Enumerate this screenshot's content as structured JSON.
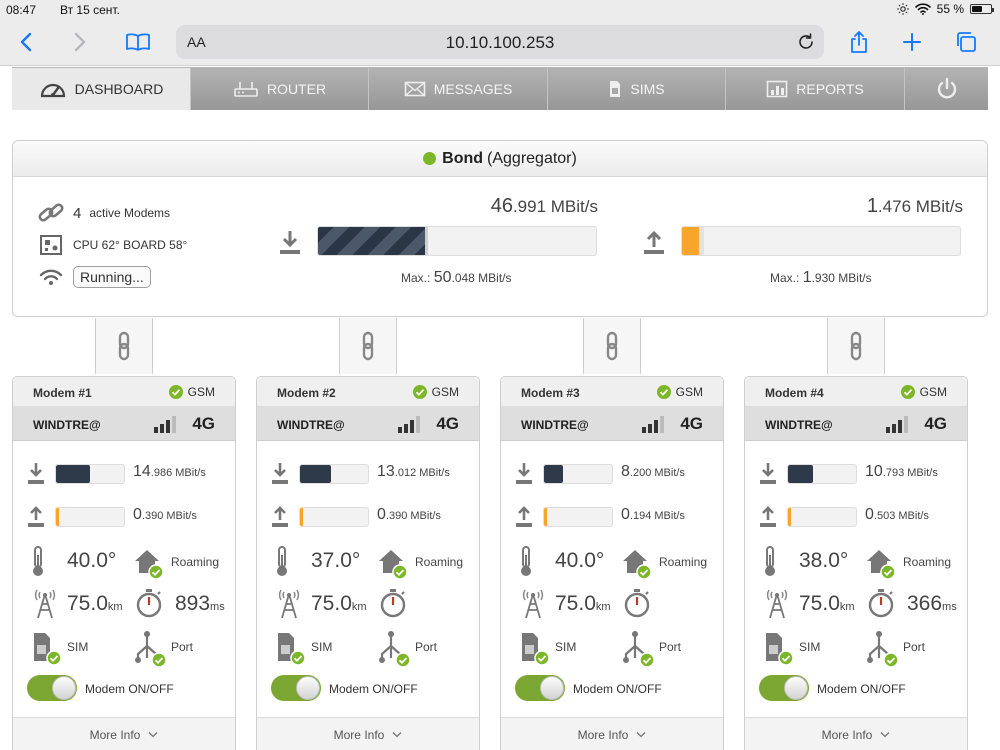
{
  "statusbar": {
    "time": "08:47",
    "date": "Вт 15 сент.",
    "battery": "55 %",
    "battery_level": 0.55
  },
  "browser": {
    "aa": "AA",
    "url": "10.10.100.253"
  },
  "nav": {
    "tabs": [
      {
        "label": "DASHBOARD",
        "icon": "gauge-icon"
      },
      {
        "label": "ROUTER",
        "icon": "router-icon"
      },
      {
        "label": "MESSAGES",
        "icon": "envelope-icon"
      },
      {
        "label": "SIMS",
        "icon": "sim-icon"
      },
      {
        "label": "REPORTS",
        "icon": "chart-icon"
      }
    ]
  },
  "bond": {
    "title": "Bond",
    "subtitle": "(Aggregator)",
    "modems_count": "4",
    "modems_label": "active Modems",
    "cpu": "CPU 62° BOARD 58°",
    "status": "Running...",
    "download": {
      "int": "46",
      "frac": ".991 MBit/s",
      "max_label": "Max.:",
      "max_int": "50",
      "max_frac": ".048 MBit/s",
      "fill": 0.395
    },
    "upload": {
      "int": "1",
      "frac": ".476 MBit/s",
      "max_label": "Max.:",
      "max_int": "1",
      "max_frac": ".930 MBit/s",
      "fill": 0.08
    }
  },
  "modems": [
    {
      "name": "Modem #1",
      "gsm": "GSM",
      "operator": "WINDTRE@",
      "tech": "4G",
      "dl_int": "14",
      "dl_frac": ".986 MBit/s",
      "dl_fill": 0.5,
      "ul_int": "0",
      "ul_frac": ".390 MBit/s",
      "temp": "40.0°",
      "roaming": "Roaming",
      "dist": "75.0",
      "dist_unit": "km",
      "lat": "893",
      "lat_unit": "ms",
      "sim": "SIM",
      "port": "Port",
      "toggle": "Modem ON/OFF",
      "more": "More Info"
    },
    {
      "name": "Modem #2",
      "gsm": "GSM",
      "operator": "WINDTRE@",
      "tech": "4G",
      "dl_int": "13",
      "dl_frac": ".012 MBit/s",
      "dl_fill": 0.45,
      "ul_int": "0",
      "ul_frac": ".390 MBit/s",
      "temp": "37.0°",
      "roaming": "Roaming",
      "dist": "75.0",
      "dist_unit": "km",
      "lat": "",
      "lat_unit": "",
      "sim": "SIM",
      "port": "Port",
      "toggle": "Modem ON/OFF",
      "more": "More Info"
    },
    {
      "name": "Modem #3",
      "gsm": "GSM",
      "operator": "WINDTRE@",
      "tech": "4G",
      "dl_int": "8",
      "dl_frac": ".200 MBit/s",
      "dl_fill": 0.28,
      "ul_int": "0",
      "ul_frac": ".194 MBit/s",
      "temp": "40.0°",
      "roaming": "Roaming",
      "dist": "75.0",
      "dist_unit": "km",
      "lat": "",
      "lat_unit": "",
      "sim": "SIM",
      "port": "Port",
      "toggle": "Modem ON/OFF",
      "more": "More Info"
    },
    {
      "name": "Modem #4",
      "gsm": "GSM",
      "operator": "WINDTRE@",
      "tech": "4G",
      "dl_int": "10",
      "dl_frac": ".793 MBit/s",
      "dl_fill": 0.37,
      "ul_int": "0",
      "ul_frac": ".503 MBit/s",
      "temp": "38.0°",
      "roaming": "Roaming",
      "dist": "75.0",
      "dist_unit": "km",
      "lat": "366",
      "lat_unit": "ms",
      "sim": "SIM",
      "port": "Port",
      "toggle": "Modem ON/OFF",
      "more": "More Info"
    }
  ],
  "colors": {
    "accent_green": "#7bb728",
    "download": "#2e3a4a",
    "upload": "#f8a52c",
    "ios_blue": "#1479ff"
  }
}
